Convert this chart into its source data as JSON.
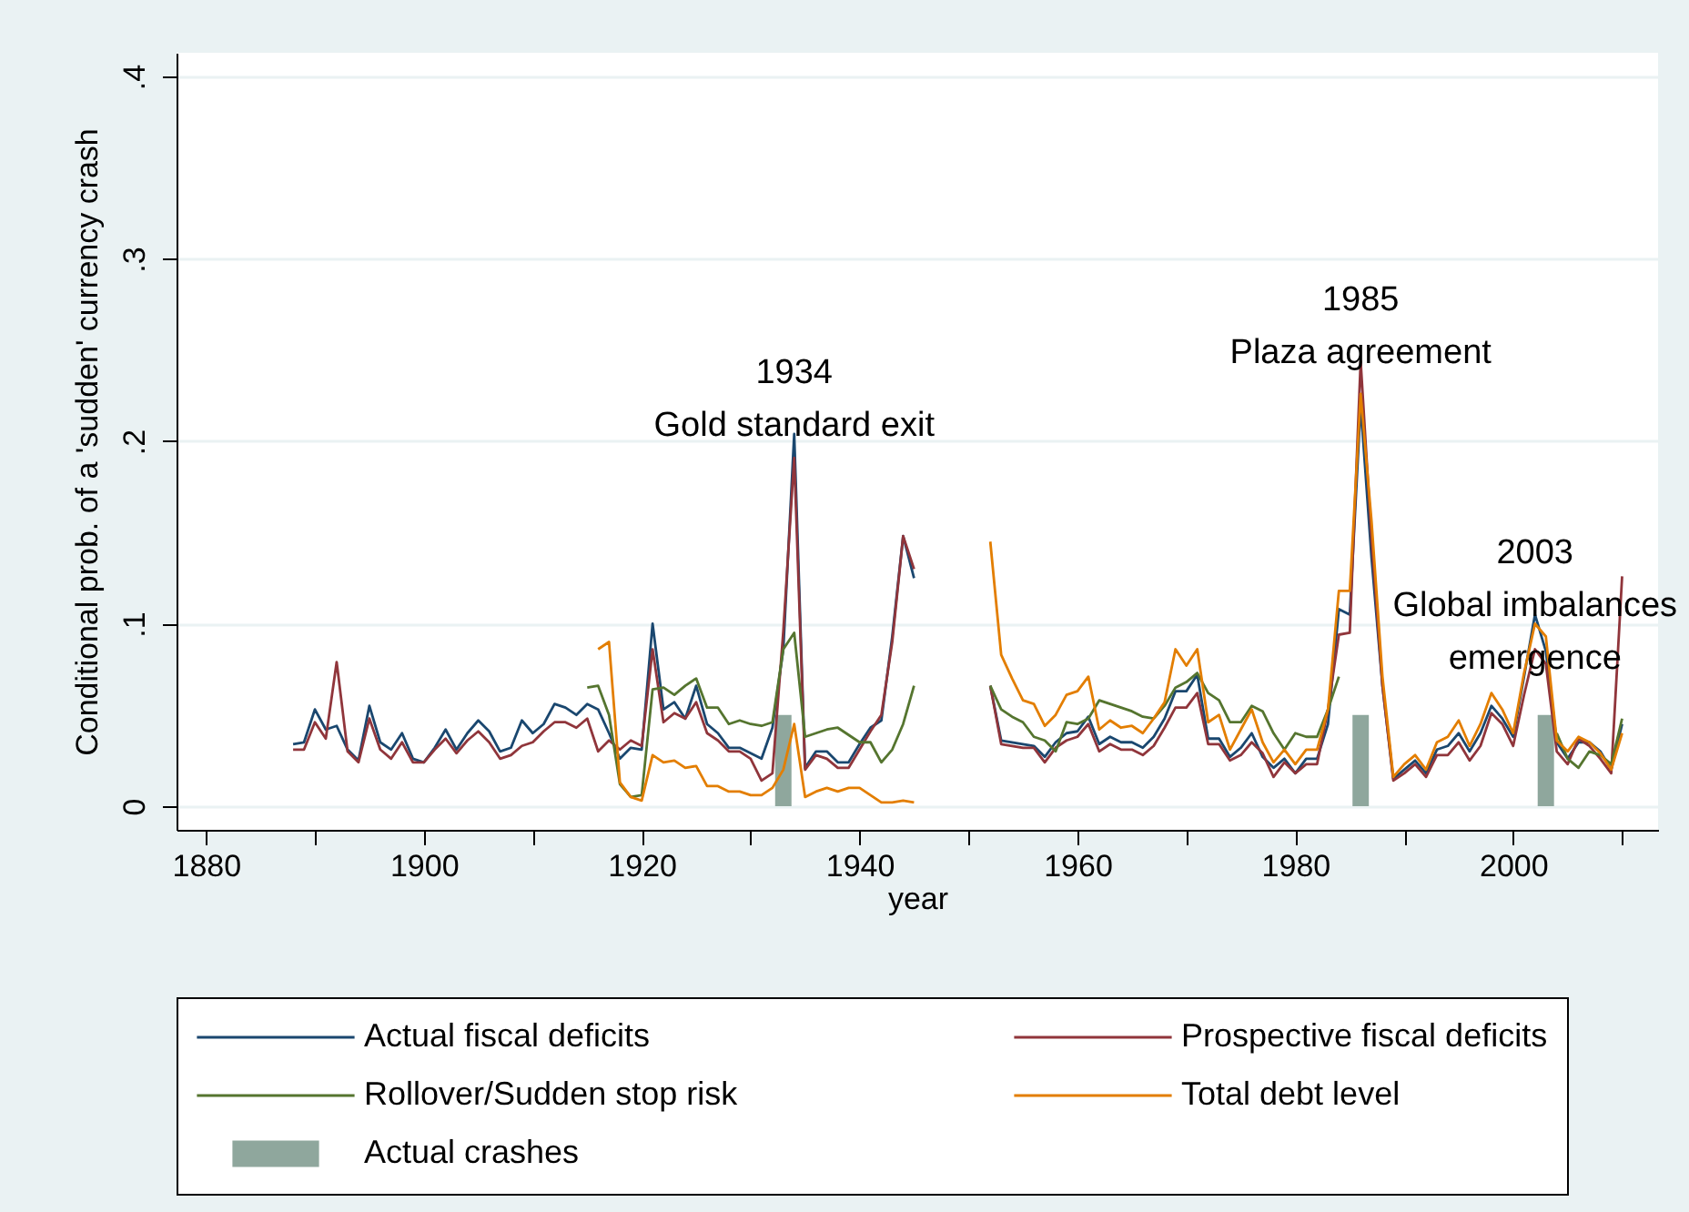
{
  "chart_data": {
    "type": "line",
    "xlabel": "year",
    "ylabel": "Conditional prob. of a 'sudden' currency crash",
    "xlim": [
      1877.3,
      2013.3
    ],
    "ylim": [
      -0.013,
      0.413
    ],
    "xticks": [
      1880,
      {
        "value": 1890,
        "label": null
      },
      1900,
      {
        "value": 1910,
        "label": null
      },
      1920,
      {
        "value": 1930,
        "label": null
      },
      1940,
      {
        "value": 1950,
        "label": null
      },
      1960,
      {
        "value": 1970,
        "label": null
      },
      1980,
      {
        "value": 1990,
        "label": null
      },
      2000,
      {
        "value": 2010,
        "label": null
      }
    ],
    "yticks": [
      0,
      {
        "value": 0.1,
        "label": ".1"
      },
      {
        "value": 0.2,
        "label": ".2"
      },
      {
        "value": 0.3,
        "label": ".3"
      },
      {
        "value": 0.4,
        "label": ".4"
      }
    ],
    "grid": "y",
    "legend": "bottom",
    "x": [
      1888,
      1889,
      1890,
      1891,
      1892,
      1893,
      1894,
      1895,
      1896,
      1897,
      1898,
      1899,
      1900,
      1901,
      1902,
      1903,
      1904,
      1905,
      1906,
      1907,
      1908,
      1909,
      1910,
      1911,
      1912,
      1913,
      1914,
      1915,
      1916,
      1917,
      1918,
      1919,
      1920,
      1921,
      1922,
      1923,
      1924,
      1925,
      1926,
      1927,
      1928,
      1929,
      1930,
      1931,
      1932,
      1933,
      1934,
      1935,
      1936,
      1937,
      1938,
      1939,
      1940,
      1941,
      1942,
      1943,
      1944,
      1945,
      1946,
      1947,
      1948,
      1949,
      1950,
      1951,
      1952,
      1953,
      1954,
      1955,
      1956,
      1957,
      1958,
      1959,
      1960,
      1961,
      1962,
      1963,
      1964,
      1965,
      1966,
      1967,
      1968,
      1969,
      1970,
      1971,
      1972,
      1973,
      1974,
      1975,
      1976,
      1977,
      1978,
      1979,
      1980,
      1981,
      1982,
      1983,
      1984,
      1985,
      1986,
      1987,
      1988,
      1989,
      1990,
      1991,
      1992,
      1993,
      1994,
      1995,
      1996,
      1997,
      1998,
      1999,
      2000,
      2001,
      2002,
      2003,
      2004,
      2005,
      2006,
      2007,
      2008,
      2009,
      2010
    ],
    "series": [
      {
        "name": "Actual fiscal deficits",
        "color": "#1a476f",
        "values": [
          0.034,
          0.035,
          0.053,
          0.042,
          0.044,
          0.031,
          0.025,
          0.055,
          0.035,
          0.031,
          0.04,
          0.026,
          0.024,
          0.032,
          0.042,
          0.031,
          0.04,
          0.047,
          0.041,
          0.03,
          0.032,
          0.047,
          0.04,
          0.045,
          0.056,
          0.054,
          0.05,
          0.056,
          0.053,
          0.04,
          0.026,
          0.032,
          0.031,
          0.1,
          0.053,
          0.057,
          0.048,
          0.066,
          0.045,
          0.04,
          0.032,
          0.032,
          0.029,
          0.026,
          0.043,
          0.086,
          0.204,
          0.021,
          0.03,
          0.03,
          0.024,
          0.024,
          0.034,
          0.043,
          0.047,
          0.093,
          0.148,
          0.125,
          null,
          null,
          null,
          null,
          null,
          null,
          0.066,
          0.036,
          0.035,
          0.034,
          0.033,
          0.027,
          0.035,
          0.04,
          0.041,
          0.049,
          0.034,
          0.038,
          0.035,
          0.035,
          0.032,
          0.038,
          0.048,
          0.063,
          0.063,
          0.072,
          0.037,
          0.037,
          0.027,
          0.032,
          0.04,
          0.027,
          0.021,
          0.026,
          0.018,
          0.026,
          0.026,
          0.045,
          0.108,
          0.105,
          0.22,
          0.136,
          0.066,
          0.015,
          0.02,
          0.025,
          0.018,
          0.031,
          0.033,
          0.04,
          0.03,
          0.04,
          0.055,
          0.048,
          0.038,
          0.071,
          0.105,
          0.085,
          0.035,
          0.026,
          0.035,
          0.035,
          0.03,
          0.02,
          0.045
        ]
      },
      {
        "name": "Prospective fiscal deficits",
        "color": "#90353b",
        "values": [
          0.031,
          0.031,
          0.046,
          0.037,
          0.079,
          0.03,
          0.024,
          0.048,
          0.031,
          0.026,
          0.035,
          0.024,
          0.024,
          0.031,
          0.037,
          0.029,
          0.036,
          0.041,
          0.035,
          0.026,
          0.028,
          0.033,
          0.035,
          0.041,
          0.046,
          0.046,
          0.043,
          0.048,
          0.03,
          0.036,
          0.031,
          0.036,
          0.033,
          0.086,
          0.046,
          0.051,
          0.048,
          0.057,
          0.04,
          0.036,
          0.03,
          0.03,
          0.026,
          0.014,
          0.018,
          0.096,
          0.191,
          0.02,
          0.028,
          0.026,
          0.021,
          0.021,
          0.031,
          0.041,
          0.05,
          0.09,
          0.148,
          0.13,
          null,
          null,
          null,
          null,
          null,
          null,
          0.066,
          0.034,
          0.033,
          0.032,
          0.032,
          0.024,
          0.032,
          0.036,
          0.038,
          0.045,
          0.03,
          0.034,
          0.031,
          0.031,
          0.028,
          0.033,
          0.043,
          0.054,
          0.054,
          0.062,
          0.034,
          0.034,
          0.025,
          0.028,
          0.035,
          0.029,
          0.016,
          0.024,
          0.018,
          0.023,
          0.023,
          0.053,
          0.094,
          0.095,
          0.244,
          0.146,
          0.066,
          0.014,
          0.018,
          0.023,
          0.016,
          0.028,
          0.028,
          0.035,
          0.025,
          0.033,
          0.051,
          0.045,
          0.033,
          0.061,
          0.086,
          0.078,
          0.03,
          0.023,
          0.037,
          0.033,
          0.026,
          0.018,
          0.126
        ]
      },
      {
        "name": "Rollover/Sudden stop risk",
        "color": "#55752f",
        "values": [
          null,
          null,
          null,
          null,
          null,
          null,
          null,
          null,
          null,
          null,
          null,
          null,
          null,
          null,
          null,
          null,
          null,
          null,
          null,
          null,
          null,
          null,
          null,
          null,
          null,
          null,
          null,
          0.065,
          0.066,
          0.05,
          0.012,
          0.005,
          0.006,
          0.064,
          0.065,
          0.061,
          0.066,
          0.07,
          0.054,
          0.054,
          0.045,
          0.047,
          0.045,
          0.044,
          0.046,
          0.086,
          0.095,
          0.038,
          0.04,
          0.042,
          0.043,
          0.039,
          0.035,
          0.035,
          0.024,
          0.031,
          0.045,
          0.066,
          null,
          null,
          null,
          null,
          null,
          null,
          0.066,
          0.053,
          0.049,
          0.046,
          0.038,
          0.036,
          0.03,
          0.046,
          0.045,
          0.048,
          0.058,
          0.056,
          0.054,
          0.052,
          0.049,
          0.048,
          0.055,
          0.065,
          0.068,
          0.073,
          0.062,
          0.058,
          0.046,
          0.046,
          0.055,
          0.052,
          0.04,
          0.031,
          0.04,
          0.038,
          0.038,
          0.053,
          0.071,
          null,
          null,
          null,
          null,
          null,
          null,
          null,
          null,
          null,
          null,
          null,
          null,
          null,
          null,
          null,
          null,
          null,
          null,
          null,
          0.04,
          0.026,
          0.021,
          0.03,
          0.028,
          0.023,
          0.048
        ]
      },
      {
        "name": "Total debt level",
        "color": "#e37e00",
        "values": [
          null,
          null,
          null,
          null,
          null,
          null,
          null,
          null,
          null,
          null,
          null,
          null,
          null,
          null,
          null,
          null,
          null,
          null,
          null,
          null,
          null,
          null,
          null,
          null,
          null,
          null,
          null,
          null,
          0.086,
          0.09,
          0.013,
          0.005,
          0.003,
          0.028,
          0.024,
          0.025,
          0.021,
          0.022,
          0.011,
          0.011,
          0.008,
          0.008,
          0.006,
          0.006,
          0.01,
          0.02,
          0.045,
          0.005,
          0.008,
          0.01,
          0.008,
          0.01,
          0.01,
          0.006,
          0.002,
          0.002,
          0.003,
          0.002,
          null,
          null,
          null,
          null,
          null,
          null,
          0.145,
          0.083,
          0.07,
          0.058,
          0.056,
          0.044,
          0.05,
          0.061,
          0.063,
          0.071,
          0.042,
          0.047,
          0.043,
          0.044,
          0.04,
          0.048,
          0.057,
          0.086,
          0.077,
          0.086,
          0.046,
          0.05,
          0.031,
          0.042,
          0.053,
          0.035,
          0.024,
          0.031,
          0.023,
          0.031,
          0.031,
          0.053,
          0.118,
          0.118,
          0.226,
          0.156,
          0.071,
          0.016,
          0.023,
          0.028,
          0.02,
          0.035,
          0.038,
          0.047,
          0.033,
          0.045,
          0.062,
          0.053,
          0.04,
          0.073,
          0.1,
          0.093,
          0.036,
          0.03,
          0.038,
          0.035,
          0.029,
          0.02,
          0.04
        ]
      },
      {
        "name": "Actual crashes",
        "type": "bar",
        "color": "#8fa79d",
        "x": [
          1933,
          1986,
          2003
        ],
        "values": [
          0.05,
          0.05,
          0.05
        ]
      }
    ],
    "annotations": [
      {
        "text": "1934\nGold standard exit",
        "x": 1934,
        "y": 0.204
      },
      {
        "text": "1985\nPlaza agreement",
        "x": 1986,
        "y": 0.244
      },
      {
        "text": "2003\nGlobal imbalances\nemergence",
        "x": 2002,
        "y": 0.105
      }
    ]
  }
}
